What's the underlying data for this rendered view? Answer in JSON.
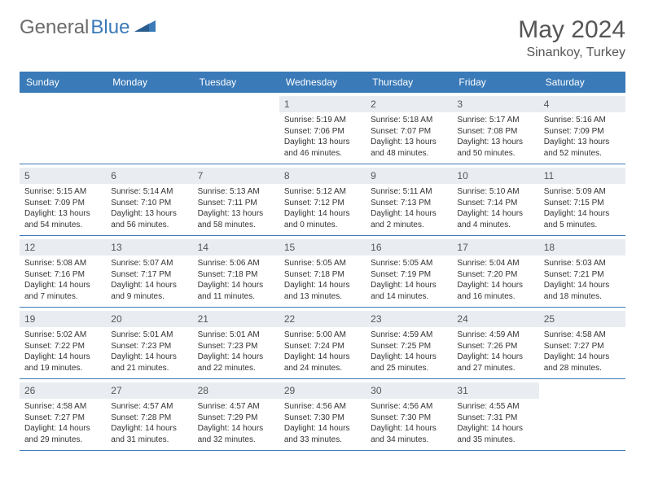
{
  "logo": {
    "text1": "General",
    "text2": "Blue"
  },
  "title": "May 2024",
  "location": "Sinankoy, Turkey",
  "colors": {
    "header_bg": "#3a7ab8",
    "header_text": "#ffffff",
    "daynum_bg": "#e9edf1",
    "border": "#3a7ab8",
    "logo_gray": "#6b6b6b",
    "logo_blue": "#3a7ab8"
  },
  "dow": [
    "Sunday",
    "Monday",
    "Tuesday",
    "Wednesday",
    "Thursday",
    "Friday",
    "Saturday"
  ],
  "weeks": [
    [
      {
        "n": "",
        "l1": "",
        "l2": "",
        "l3": "",
        "l4": ""
      },
      {
        "n": "",
        "l1": "",
        "l2": "",
        "l3": "",
        "l4": ""
      },
      {
        "n": "",
        "l1": "",
        "l2": "",
        "l3": "",
        "l4": ""
      },
      {
        "n": "1",
        "l1": "Sunrise: 5:19 AM",
        "l2": "Sunset: 7:06 PM",
        "l3": "Daylight: 13 hours",
        "l4": "and 46 minutes."
      },
      {
        "n": "2",
        "l1": "Sunrise: 5:18 AM",
        "l2": "Sunset: 7:07 PM",
        "l3": "Daylight: 13 hours",
        "l4": "and 48 minutes."
      },
      {
        "n": "3",
        "l1": "Sunrise: 5:17 AM",
        "l2": "Sunset: 7:08 PM",
        "l3": "Daylight: 13 hours",
        "l4": "and 50 minutes."
      },
      {
        "n": "4",
        "l1": "Sunrise: 5:16 AM",
        "l2": "Sunset: 7:09 PM",
        "l3": "Daylight: 13 hours",
        "l4": "and 52 minutes."
      }
    ],
    [
      {
        "n": "5",
        "l1": "Sunrise: 5:15 AM",
        "l2": "Sunset: 7:09 PM",
        "l3": "Daylight: 13 hours",
        "l4": "and 54 minutes."
      },
      {
        "n": "6",
        "l1": "Sunrise: 5:14 AM",
        "l2": "Sunset: 7:10 PM",
        "l3": "Daylight: 13 hours",
        "l4": "and 56 minutes."
      },
      {
        "n": "7",
        "l1": "Sunrise: 5:13 AM",
        "l2": "Sunset: 7:11 PM",
        "l3": "Daylight: 13 hours",
        "l4": "and 58 minutes."
      },
      {
        "n": "8",
        "l1": "Sunrise: 5:12 AM",
        "l2": "Sunset: 7:12 PM",
        "l3": "Daylight: 14 hours",
        "l4": "and 0 minutes."
      },
      {
        "n": "9",
        "l1": "Sunrise: 5:11 AM",
        "l2": "Sunset: 7:13 PM",
        "l3": "Daylight: 14 hours",
        "l4": "and 2 minutes."
      },
      {
        "n": "10",
        "l1": "Sunrise: 5:10 AM",
        "l2": "Sunset: 7:14 PM",
        "l3": "Daylight: 14 hours",
        "l4": "and 4 minutes."
      },
      {
        "n": "11",
        "l1": "Sunrise: 5:09 AM",
        "l2": "Sunset: 7:15 PM",
        "l3": "Daylight: 14 hours",
        "l4": "and 5 minutes."
      }
    ],
    [
      {
        "n": "12",
        "l1": "Sunrise: 5:08 AM",
        "l2": "Sunset: 7:16 PM",
        "l3": "Daylight: 14 hours",
        "l4": "and 7 minutes."
      },
      {
        "n": "13",
        "l1": "Sunrise: 5:07 AM",
        "l2": "Sunset: 7:17 PM",
        "l3": "Daylight: 14 hours",
        "l4": "and 9 minutes."
      },
      {
        "n": "14",
        "l1": "Sunrise: 5:06 AM",
        "l2": "Sunset: 7:18 PM",
        "l3": "Daylight: 14 hours",
        "l4": "and 11 minutes."
      },
      {
        "n": "15",
        "l1": "Sunrise: 5:05 AM",
        "l2": "Sunset: 7:18 PM",
        "l3": "Daylight: 14 hours",
        "l4": "and 13 minutes."
      },
      {
        "n": "16",
        "l1": "Sunrise: 5:05 AM",
        "l2": "Sunset: 7:19 PM",
        "l3": "Daylight: 14 hours",
        "l4": "and 14 minutes."
      },
      {
        "n": "17",
        "l1": "Sunrise: 5:04 AM",
        "l2": "Sunset: 7:20 PM",
        "l3": "Daylight: 14 hours",
        "l4": "and 16 minutes."
      },
      {
        "n": "18",
        "l1": "Sunrise: 5:03 AM",
        "l2": "Sunset: 7:21 PM",
        "l3": "Daylight: 14 hours",
        "l4": "and 18 minutes."
      }
    ],
    [
      {
        "n": "19",
        "l1": "Sunrise: 5:02 AM",
        "l2": "Sunset: 7:22 PM",
        "l3": "Daylight: 14 hours",
        "l4": "and 19 minutes."
      },
      {
        "n": "20",
        "l1": "Sunrise: 5:01 AM",
        "l2": "Sunset: 7:23 PM",
        "l3": "Daylight: 14 hours",
        "l4": "and 21 minutes."
      },
      {
        "n": "21",
        "l1": "Sunrise: 5:01 AM",
        "l2": "Sunset: 7:23 PM",
        "l3": "Daylight: 14 hours",
        "l4": "and 22 minutes."
      },
      {
        "n": "22",
        "l1": "Sunrise: 5:00 AM",
        "l2": "Sunset: 7:24 PM",
        "l3": "Daylight: 14 hours",
        "l4": "and 24 minutes."
      },
      {
        "n": "23",
        "l1": "Sunrise: 4:59 AM",
        "l2": "Sunset: 7:25 PM",
        "l3": "Daylight: 14 hours",
        "l4": "and 25 minutes."
      },
      {
        "n": "24",
        "l1": "Sunrise: 4:59 AM",
        "l2": "Sunset: 7:26 PM",
        "l3": "Daylight: 14 hours",
        "l4": "and 27 minutes."
      },
      {
        "n": "25",
        "l1": "Sunrise: 4:58 AM",
        "l2": "Sunset: 7:27 PM",
        "l3": "Daylight: 14 hours",
        "l4": "and 28 minutes."
      }
    ],
    [
      {
        "n": "26",
        "l1": "Sunrise: 4:58 AM",
        "l2": "Sunset: 7:27 PM",
        "l3": "Daylight: 14 hours",
        "l4": "and 29 minutes."
      },
      {
        "n": "27",
        "l1": "Sunrise: 4:57 AM",
        "l2": "Sunset: 7:28 PM",
        "l3": "Daylight: 14 hours",
        "l4": "and 31 minutes."
      },
      {
        "n": "28",
        "l1": "Sunrise: 4:57 AM",
        "l2": "Sunset: 7:29 PM",
        "l3": "Daylight: 14 hours",
        "l4": "and 32 minutes."
      },
      {
        "n": "29",
        "l1": "Sunrise: 4:56 AM",
        "l2": "Sunset: 7:30 PM",
        "l3": "Daylight: 14 hours",
        "l4": "and 33 minutes."
      },
      {
        "n": "30",
        "l1": "Sunrise: 4:56 AM",
        "l2": "Sunset: 7:30 PM",
        "l3": "Daylight: 14 hours",
        "l4": "and 34 minutes."
      },
      {
        "n": "31",
        "l1": "Sunrise: 4:55 AM",
        "l2": "Sunset: 7:31 PM",
        "l3": "Daylight: 14 hours",
        "l4": "and 35 minutes."
      },
      {
        "n": "",
        "l1": "",
        "l2": "",
        "l3": "",
        "l4": ""
      }
    ]
  ]
}
